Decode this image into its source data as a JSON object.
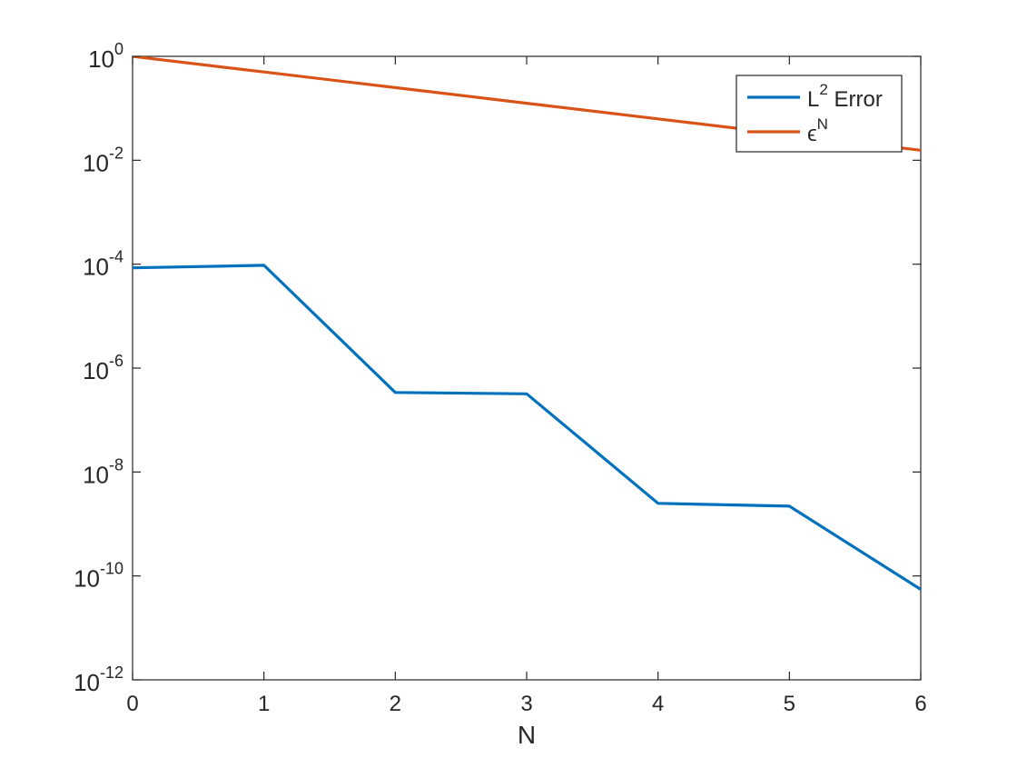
{
  "chart_data": {
    "type": "line",
    "xlabel": "N",
    "ylabel": "",
    "yscale": "log",
    "xlim": [
      0,
      6
    ],
    "ylim": [
      1e-12,
      1
    ],
    "x_ticks": [
      0,
      1,
      2,
      3,
      4,
      5,
      6
    ],
    "y_ticks": [
      {
        "value": 1,
        "base": "10",
        "exp": "0"
      },
      {
        "value": 0.01,
        "base": "10",
        "exp": "-2"
      },
      {
        "value": 0.0001,
        "base": "10",
        "exp": "-4"
      },
      {
        "value": 1e-06,
        "base": "10",
        "exp": "-6"
      },
      {
        "value": 1e-08,
        "base": "10",
        "exp": "-8"
      },
      {
        "value": 1e-10,
        "base": "10",
        "exp": "-10"
      },
      {
        "value": 1e-12,
        "base": "10",
        "exp": "-12"
      }
    ],
    "grid": false,
    "legend_position": "top-right",
    "series": [
      {
        "name": "L^2 Error",
        "legend_main": "L",
        "legend_sup": "2",
        "legend_tail": " Error",
        "color": "#0072BD",
        "x": [
          0,
          1,
          2,
          3,
          4,
          5,
          6
        ],
        "y": [
          8.5e-05,
          9.5e-05,
          3.4e-07,
          3.2e-07,
          2.5e-09,
          2.2e-09,
          5.5e-11
        ]
      },
      {
        "name": "ε^N",
        "legend_main": "ϵ",
        "legend_sup": "N",
        "legend_tail": "",
        "color": "#D95319",
        "x": [
          0,
          1,
          2,
          3,
          4,
          5,
          6
        ],
        "y": [
          1,
          0.5,
          0.25,
          0.125,
          0.0625,
          0.03125,
          0.015625
        ]
      }
    ]
  }
}
